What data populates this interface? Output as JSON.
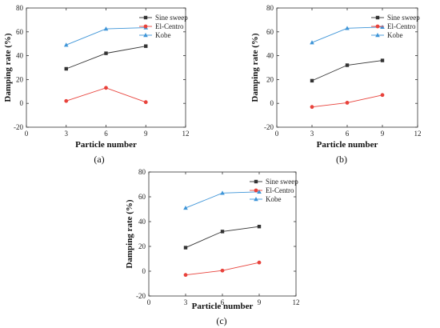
{
  "colors": {
    "sine": "#333333",
    "elcentro": "#e8423b",
    "kobe": "#3e95d8"
  },
  "chart_data": [
    {
      "type": "line",
      "panel_label": "(a)",
      "xlabel": "Particle number",
      "ylabel": "Damping rate (%)",
      "xlim": [
        0,
        12
      ],
      "ylim": [
        -20,
        80
      ],
      "x_ticks": [
        "0",
        "3",
        "6",
        "9",
        "12"
      ],
      "y_ticks": [
        "-20",
        "0",
        "20",
        "40",
        "60",
        "80"
      ],
      "legend_position": "top-right",
      "x": [
        3,
        6,
        9
      ],
      "series": [
        {
          "name": "Sine sweep",
          "values": [
            29,
            42,
            48
          ],
          "marker": "square",
          "color": "#333333"
        },
        {
          "name": "El-Centro",
          "values": [
            2,
            13,
            1
          ],
          "marker": "circle",
          "color": "#e8423b"
        },
        {
          "name": "Kobe",
          "values": [
            49,
            62.5,
            63.5
          ],
          "marker": "triangle",
          "color": "#3e95d8"
        }
      ]
    },
    {
      "type": "line",
      "panel_label": "(b)",
      "xlabel": "Particle number",
      "ylabel": "Damping rate (%)",
      "xlim": [
        0,
        12
      ],
      "ylim": [
        -20,
        80
      ],
      "x_ticks": [
        "0",
        "3",
        "6",
        "9",
        "12"
      ],
      "y_ticks": [
        "-20",
        "0",
        "20",
        "40",
        "60",
        "80"
      ],
      "legend_position": "top-right",
      "x": [
        3,
        6,
        9
      ],
      "series": [
        {
          "name": "Sine sweep",
          "values": [
            19,
            32,
            36
          ],
          "marker": "square",
          "color": "#333333"
        },
        {
          "name": "El-Centro",
          "values": [
            -3,
            0.5,
            7
          ],
          "marker": "circle",
          "color": "#e8423b"
        },
        {
          "name": "Kobe",
          "values": [
            51,
            63,
            64
          ],
          "marker": "triangle",
          "color": "#3e95d8"
        }
      ]
    },
    {
      "type": "line",
      "panel_label": "(c)",
      "xlabel": "Particle number",
      "ylabel": "Damping rate (%)",
      "xlim": [
        0,
        12
      ],
      "ylim": [
        -20,
        80
      ],
      "x_ticks": [
        "0",
        "3",
        "6",
        "9",
        "12"
      ],
      "y_ticks": [
        "-20",
        "0",
        "20",
        "40",
        "60",
        "80"
      ],
      "legend_position": "top-right",
      "x": [
        3,
        6,
        9
      ],
      "series": [
        {
          "name": "Sine sweep",
          "values": [
            19,
            32,
            36
          ],
          "marker": "square",
          "color": "#333333"
        },
        {
          "name": "El-Centro",
          "values": [
            -3,
            0.5,
            7
          ],
          "marker": "circle",
          "color": "#e8423b"
        },
        {
          "name": "Kobe",
          "values": [
            51,
            63,
            64
          ],
          "marker": "triangle",
          "color": "#3e95d8"
        }
      ]
    }
  ]
}
